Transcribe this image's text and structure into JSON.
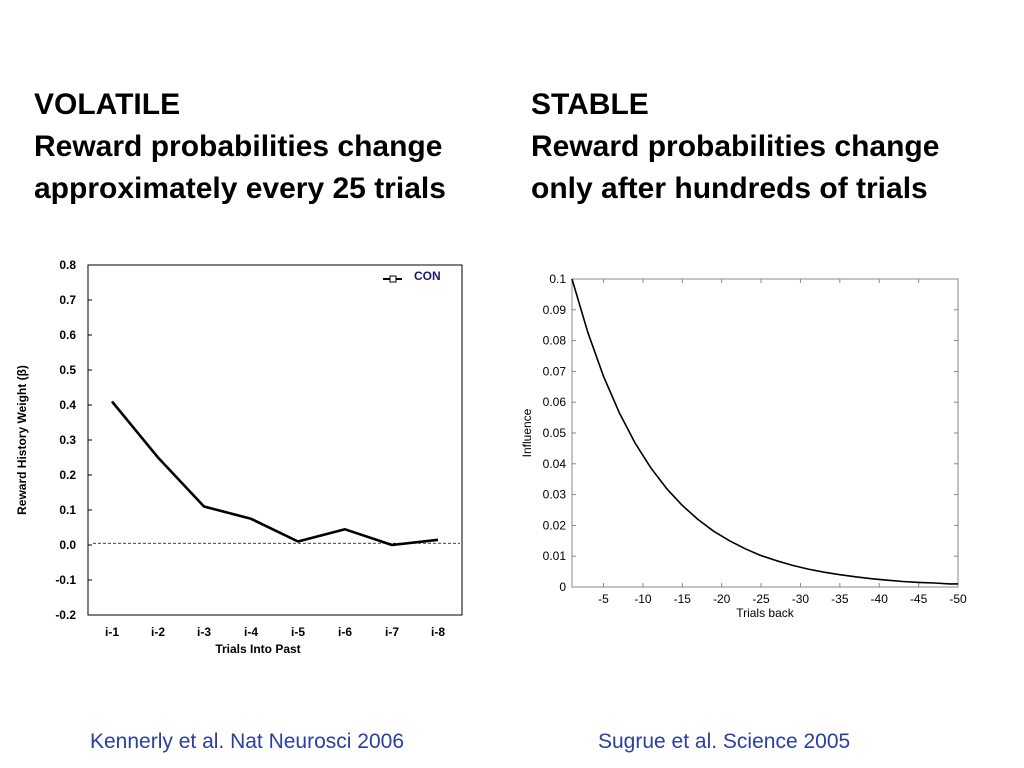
{
  "headings": {
    "left": {
      "title": "VOLATILE",
      "line1": "Reward probabilities change",
      "line2": "approximately every 25 trials"
    },
    "right": {
      "title": "STABLE",
      "line1": "Reward probabilities change",
      "line2": "only after hundreds of trials"
    }
  },
  "citations": {
    "left": "Kennerly et al. Nat Neurosci 2006",
    "right": "Sugrue et al. Science 2005"
  },
  "colors": {
    "citation": "#2a3fa0",
    "line": "#000000"
  },
  "chart_data": [
    {
      "type": "line",
      "title": "",
      "xlabel": "Trials Into Past",
      "ylabel": "Reward History Weight (β)",
      "categories": [
        "i-1",
        "i-2",
        "i-3",
        "i-4",
        "i-5",
        "i-6",
        "i-7",
        "i-8"
      ],
      "series": [
        {
          "name": "CON",
          "values": [
            0.41,
            0.25,
            0.11,
            0.075,
            0.01,
            0.045,
            0.0,
            0.015
          ]
        }
      ],
      "ylim": [
        -0.2,
        0.8
      ],
      "yticks": [
        0.8,
        0.7,
        0.6,
        0.5,
        0.4,
        0.3,
        0.2,
        0.1,
        0.0,
        -0.1,
        -0.2
      ],
      "ytick_labels": [
        "0.8",
        "0.7",
        "0.6",
        "0.5",
        "0.4",
        "0.3",
        "0.2",
        "0.1",
        "0.0",
        "-0.1",
        "-0.2"
      ],
      "reference_line": {
        "y": 0.005,
        "style": "dashed"
      },
      "legend": {
        "position": "top-right",
        "marker": "open-square"
      },
      "grid": false
    },
    {
      "type": "line",
      "title": "",
      "xlabel": "Trials back",
      "ylabel": "Influence",
      "x_range": [
        -1,
        -50
      ],
      "xticks": [
        -5,
        -10,
        -15,
        -20,
        -25,
        -30,
        -35,
        -40,
        -45,
        -50
      ],
      "xtick_labels": [
        "-5",
        "-10",
        "-15",
        "-20",
        "-25",
        "-30",
        "-35",
        "-40",
        "-45",
        "-50"
      ],
      "ylim": [
        0,
        0.1
      ],
      "yticks": [
        0.1,
        0.09,
        0.08,
        0.07,
        0.06,
        0.05,
        0.04,
        0.03,
        0.02,
        0.01,
        0
      ],
      "ytick_labels": [
        "0.1",
        "0.09",
        "0.08",
        "0.07",
        "0.06",
        "0.05",
        "0.04",
        "0.03",
        "0.02",
        "0.01",
        "0"
      ],
      "series": [
        {
          "x": [
            -1,
            -3,
            -5,
            -7,
            -9,
            -11,
            -13,
            -15,
            -17,
            -19,
            -21,
            -23,
            -25,
            -27,
            -29,
            -31,
            -33,
            -35,
            -37,
            -39,
            -41,
            -43,
            -45,
            -47,
            -49,
            -50
          ],
          "values": [
            0.1,
            0.0827,
            0.0684,
            0.0566,
            0.0468,
            0.0387,
            0.032,
            0.0265,
            0.0219,
            0.0181,
            0.015,
            0.0124,
            0.0102,
            0.0085,
            0.007,
            0.0058,
            0.0048,
            0.004,
            0.0033,
            0.0027,
            0.0022,
            0.0018,
            0.0015,
            0.0013,
            0.001,
            0.001
          ]
        }
      ],
      "grid": false
    }
  ]
}
